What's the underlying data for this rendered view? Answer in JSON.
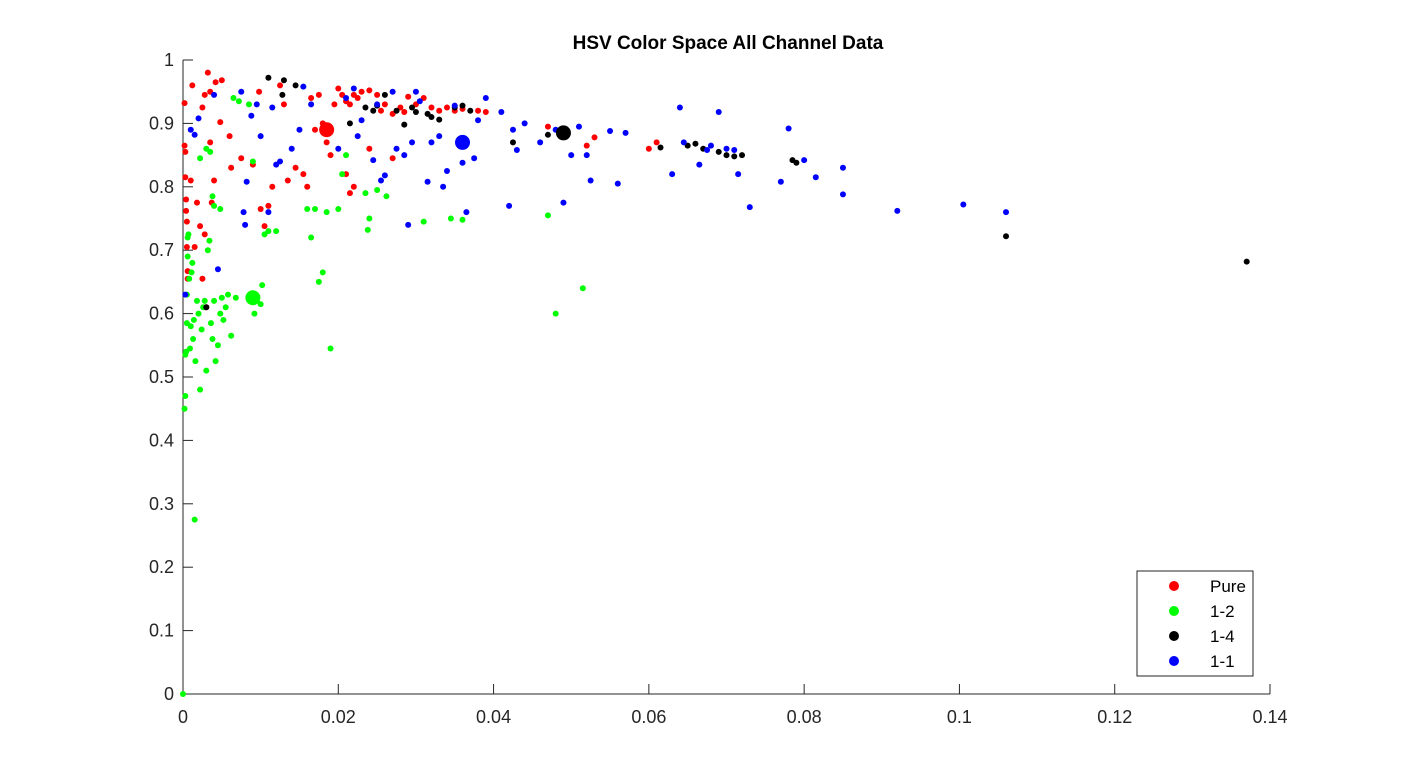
{
  "chart_data": {
    "type": "scatter",
    "title": "HSV Color Space All Channel Data",
    "xlabel": "",
    "ylabel": "",
    "xlim": [
      0,
      0.14
    ],
    "ylim": [
      0,
      1
    ],
    "xticks": [
      "0",
      "0.02",
      "0.04",
      "0.06",
      "0.08",
      "0.1",
      "0.12",
      "0.14"
    ],
    "yticks": [
      "0",
      "0.1",
      "0.2",
      "0.3",
      "0.4",
      "0.5",
      "0.6",
      "0.7",
      "0.8",
      "0.9",
      "1"
    ],
    "grid": false,
    "legend_position": "bottom-right",
    "series": [
      {
        "name": "Pure",
        "color": "#ff0000",
        "centroid": [
          0.0185,
          0.89
        ],
        "points": [
          [
            0.0002,
            0.932
          ],
          [
            0.0002,
            0.865
          ],
          [
            0.0003,
            0.855
          ],
          [
            0.0003,
            0.815
          ],
          [
            0.0004,
            0.78
          ],
          [
            0.0004,
            0.762
          ],
          [
            0.0005,
            0.745
          ],
          [
            0.0005,
            0.705
          ],
          [
            0.0006,
            0.667
          ],
          [
            0.0006,
            0.655
          ],
          [
            0.0012,
            0.96
          ],
          [
            0.001,
            0.81
          ],
          [
            0.0015,
            0.705
          ],
          [
            0.0018,
            0.775
          ],
          [
            0.0022,
            0.738
          ],
          [
            0.0025,
            0.655
          ],
          [
            0.0028,
            0.725
          ],
          [
            0.003,
            0.61
          ],
          [
            0.0025,
            0.925
          ],
          [
            0.0028,
            0.945
          ],
          [
            0.0032,
            0.98
          ],
          [
            0.0035,
            0.95
          ],
          [
            0.0042,
            0.965
          ],
          [
            0.005,
            0.968
          ],
          [
            0.0048,
            0.902
          ],
          [
            0.0035,
            0.87
          ],
          [
            0.004,
            0.81
          ],
          [
            0.0037,
            0.775
          ],
          [
            0.006,
            0.88
          ],
          [
            0.0062,
            0.83
          ],
          [
            0.0075,
            0.845
          ],
          [
            0.009,
            0.835
          ],
          [
            0.0098,
            0.95
          ],
          [
            0.01,
            0.765
          ],
          [
            0.0105,
            0.738
          ],
          [
            0.011,
            0.77
          ],
          [
            0.0115,
            0.8
          ],
          [
            0.0125,
            0.96
          ],
          [
            0.013,
            0.93
          ],
          [
            0.0135,
            0.81
          ],
          [
            0.0145,
            0.83
          ],
          [
            0.0155,
            0.82
          ],
          [
            0.016,
            0.8
          ],
          [
            0.0165,
            0.94
          ],
          [
            0.0175,
            0.945
          ],
          [
            0.018,
            0.9
          ],
          [
            0.0185,
            0.87
          ],
          [
            0.0195,
            0.93
          ],
          [
            0.02,
            0.955
          ],
          [
            0.0205,
            0.945
          ],
          [
            0.021,
            0.935
          ],
          [
            0.0215,
            0.93
          ],
          [
            0.022,
            0.945
          ],
          [
            0.0225,
            0.94
          ],
          [
            0.023,
            0.95
          ],
          [
            0.024,
            0.952
          ],
          [
            0.025,
            0.945
          ],
          [
            0.0255,
            0.92
          ],
          [
            0.026,
            0.93
          ],
          [
            0.027,
            0.915
          ],
          [
            0.028,
            0.925
          ],
          [
            0.0285,
            0.918
          ],
          [
            0.029,
            0.942
          ],
          [
            0.03,
            0.93
          ],
          [
            0.031,
            0.94
          ],
          [
            0.032,
            0.925
          ],
          [
            0.033,
            0.92
          ],
          [
            0.034,
            0.925
          ],
          [
            0.035,
            0.92
          ],
          [
            0.036,
            0.923
          ],
          [
            0.038,
            0.92
          ],
          [
            0.039,
            0.918
          ],
          [
            0.021,
            0.82
          ],
          [
            0.0215,
            0.79
          ],
          [
            0.022,
            0.8
          ],
          [
            0.019,
            0.85
          ],
          [
            0.024,
            0.86
          ],
          [
            0.027,
            0.845
          ],
          [
            0.053,
            0.878
          ],
          [
            0.047,
            0.895
          ],
          [
            0.052,
            0.865
          ],
          [
            0.06,
            0.86
          ],
          [
            0.061,
            0.87
          ],
          [
            0.017,
            0.89
          ]
        ]
      },
      {
        "name": "1-2",
        "color": "#00ff00",
        "centroid": [
          0.009,
          0.625
        ],
        "points": [
          [
            0.0,
            0.0
          ],
          [
            0.0002,
            0.45
          ],
          [
            0.0003,
            0.47
          ],
          [
            0.0003,
            0.535
          ],
          [
            0.0004,
            0.54
          ],
          [
            0.0005,
            0.585
          ],
          [
            0.0005,
            0.63
          ],
          [
            0.0006,
            0.69
          ],
          [
            0.0006,
            0.72
          ],
          [
            0.0007,
            0.725
          ],
          [
            0.0008,
            0.655
          ],
          [
            0.0009,
            0.545
          ],
          [
            0.001,
            0.58
          ],
          [
            0.0011,
            0.665
          ],
          [
            0.0012,
            0.68
          ],
          [
            0.0013,
            0.56
          ],
          [
            0.0014,
            0.59
          ],
          [
            0.0015,
            0.275
          ],
          [
            0.0016,
            0.525
          ],
          [
            0.0018,
            0.62
          ],
          [
            0.002,
            0.6
          ],
          [
            0.0022,
            0.48
          ],
          [
            0.0024,
            0.575
          ],
          [
            0.0026,
            0.61
          ],
          [
            0.0028,
            0.62
          ],
          [
            0.003,
            0.51
          ],
          [
            0.0032,
            0.7
          ],
          [
            0.0034,
            0.715
          ],
          [
            0.0036,
            0.585
          ],
          [
            0.0038,
            0.56
          ],
          [
            0.004,
            0.62
          ],
          [
            0.0042,
            0.525
          ],
          [
            0.0045,
            0.55
          ],
          [
            0.0048,
            0.6
          ],
          [
            0.005,
            0.625
          ],
          [
            0.0052,
            0.59
          ],
          [
            0.0055,
            0.61
          ],
          [
            0.0058,
            0.63
          ],
          [
            0.0062,
            0.565
          ],
          [
            0.0068,
            0.625
          ],
          [
            0.0022,
            0.845
          ],
          [
            0.003,
            0.86
          ],
          [
            0.0035,
            0.855
          ],
          [
            0.0038,
            0.785
          ],
          [
            0.004,
            0.77
          ],
          [
            0.0048,
            0.765
          ],
          [
            0.0065,
            0.94
          ],
          [
            0.0072,
            0.935
          ],
          [
            0.0085,
            0.93
          ],
          [
            0.0092,
            0.6
          ],
          [
            0.0095,
            0.62
          ],
          [
            0.01,
            0.615
          ],
          [
            0.0102,
            0.645
          ],
          [
            0.0105,
            0.725
          ],
          [
            0.011,
            0.73
          ],
          [
            0.012,
            0.73
          ],
          [
            0.016,
            0.765
          ],
          [
            0.0165,
            0.72
          ],
          [
            0.017,
            0.765
          ],
          [
            0.0175,
            0.65
          ],
          [
            0.018,
            0.665
          ],
          [
            0.0185,
            0.76
          ],
          [
            0.019,
            0.545
          ],
          [
            0.02,
            0.765
          ],
          [
            0.0205,
            0.82
          ],
          [
            0.021,
            0.85
          ],
          [
            0.0235,
            0.79
          ],
          [
            0.0238,
            0.732
          ],
          [
            0.024,
            0.75
          ],
          [
            0.025,
            0.795
          ],
          [
            0.0262,
            0.785
          ],
          [
            0.031,
            0.745
          ],
          [
            0.0345,
            0.75
          ],
          [
            0.036,
            0.748
          ],
          [
            0.047,
            0.755
          ],
          [
            0.048,
            0.6
          ],
          [
            0.0515,
            0.64
          ],
          [
            0.009,
            0.84
          ]
        ]
      },
      {
        "name": "1-4",
        "color": "#000000",
        "centroid": [
          0.049,
          0.885
        ],
        "points": [
          [
            0.003,
            0.61
          ],
          [
            0.011,
            0.972
          ],
          [
            0.0128,
            0.945
          ],
          [
            0.013,
            0.968
          ],
          [
            0.0145,
            0.96
          ],
          [
            0.0215,
            0.9
          ],
          [
            0.0235,
            0.925
          ],
          [
            0.0245,
            0.92
          ],
          [
            0.025,
            0.928
          ],
          [
            0.026,
            0.945
          ],
          [
            0.0275,
            0.92
          ],
          [
            0.0285,
            0.898
          ],
          [
            0.0295,
            0.925
          ],
          [
            0.03,
            0.918
          ],
          [
            0.0315,
            0.915
          ],
          [
            0.032,
            0.91
          ],
          [
            0.033,
            0.906
          ],
          [
            0.035,
            0.925
          ],
          [
            0.036,
            0.928
          ],
          [
            0.037,
            0.92
          ],
          [
            0.0425,
            0.87
          ],
          [
            0.047,
            0.882
          ],
          [
            0.0615,
            0.862
          ],
          [
            0.065,
            0.865
          ],
          [
            0.066,
            0.868
          ],
          [
            0.067,
            0.86
          ],
          [
            0.069,
            0.855
          ],
          [
            0.07,
            0.85
          ],
          [
            0.071,
            0.848
          ],
          [
            0.072,
            0.85
          ],
          [
            0.0785,
            0.842
          ],
          [
            0.079,
            0.838
          ],
          [
            0.106,
            0.722
          ],
          [
            0.137,
            0.682
          ]
        ]
      },
      {
        "name": "1-1",
        "color": "#0000ff",
        "centroid": [
          0.036,
          0.87
        ],
        "points": [
          [
            0.0003,
            0.63
          ],
          [
            0.001,
            0.89
          ],
          [
            0.0015,
            0.882
          ],
          [
            0.002,
            0.908
          ],
          [
            0.004,
            0.945
          ],
          [
            0.0045,
            0.67
          ],
          [
            0.0075,
            0.95
          ],
          [
            0.0078,
            0.76
          ],
          [
            0.008,
            0.74
          ],
          [
            0.0082,
            0.808
          ],
          [
            0.0088,
            0.912
          ],
          [
            0.0095,
            0.93
          ],
          [
            0.01,
            0.88
          ],
          [
            0.011,
            0.76
          ],
          [
            0.0115,
            0.925
          ],
          [
            0.012,
            0.835
          ],
          [
            0.0125,
            0.84
          ],
          [
            0.014,
            0.86
          ],
          [
            0.015,
            0.89
          ],
          [
            0.0155,
            0.958
          ],
          [
            0.0165,
            0.93
          ],
          [
            0.02,
            0.86
          ],
          [
            0.021,
            0.94
          ],
          [
            0.022,
            0.955
          ],
          [
            0.0225,
            0.88
          ],
          [
            0.023,
            0.905
          ],
          [
            0.0245,
            0.842
          ],
          [
            0.025,
            0.93
          ],
          [
            0.0255,
            0.81
          ],
          [
            0.026,
            0.818
          ],
          [
            0.027,
            0.95
          ],
          [
            0.0275,
            0.86
          ],
          [
            0.0285,
            0.85
          ],
          [
            0.029,
            0.74
          ],
          [
            0.0295,
            0.87
          ],
          [
            0.03,
            0.95
          ],
          [
            0.0305,
            0.935
          ],
          [
            0.0315,
            0.808
          ],
          [
            0.032,
            0.87
          ],
          [
            0.033,
            0.88
          ],
          [
            0.0335,
            0.8
          ],
          [
            0.034,
            0.825
          ],
          [
            0.035,
            0.928
          ],
          [
            0.036,
            0.838
          ],
          [
            0.0365,
            0.76
          ],
          [
            0.0375,
            0.845
          ],
          [
            0.038,
            0.905
          ],
          [
            0.039,
            0.94
          ],
          [
            0.041,
            0.918
          ],
          [
            0.042,
            0.77
          ],
          [
            0.0425,
            0.89
          ],
          [
            0.043,
            0.858
          ],
          [
            0.044,
            0.9
          ],
          [
            0.046,
            0.87
          ],
          [
            0.048,
            0.89
          ],
          [
            0.049,
            0.775
          ],
          [
            0.05,
            0.85
          ],
          [
            0.051,
            0.895
          ],
          [
            0.052,
            0.85
          ],
          [
            0.0525,
            0.81
          ],
          [
            0.055,
            0.888
          ],
          [
            0.056,
            0.805
          ],
          [
            0.057,
            0.885
          ],
          [
            0.063,
            0.82
          ],
          [
            0.064,
            0.925
          ],
          [
            0.0645,
            0.87
          ],
          [
            0.0665,
            0.835
          ],
          [
            0.0675,
            0.858
          ],
          [
            0.068,
            0.865
          ],
          [
            0.069,
            0.918
          ],
          [
            0.07,
            0.86
          ],
          [
            0.071,
            0.858
          ],
          [
            0.0715,
            0.82
          ],
          [
            0.073,
            0.768
          ],
          [
            0.077,
            0.808
          ],
          [
            0.078,
            0.892
          ],
          [
            0.08,
            0.842
          ],
          [
            0.0815,
            0.815
          ],
          [
            0.085,
            0.83
          ],
          [
            0.085,
            0.788
          ],
          [
            0.092,
            0.762
          ],
          [
            0.1005,
            0.772
          ],
          [
            0.106,
            0.76
          ]
        ]
      }
    ]
  }
}
